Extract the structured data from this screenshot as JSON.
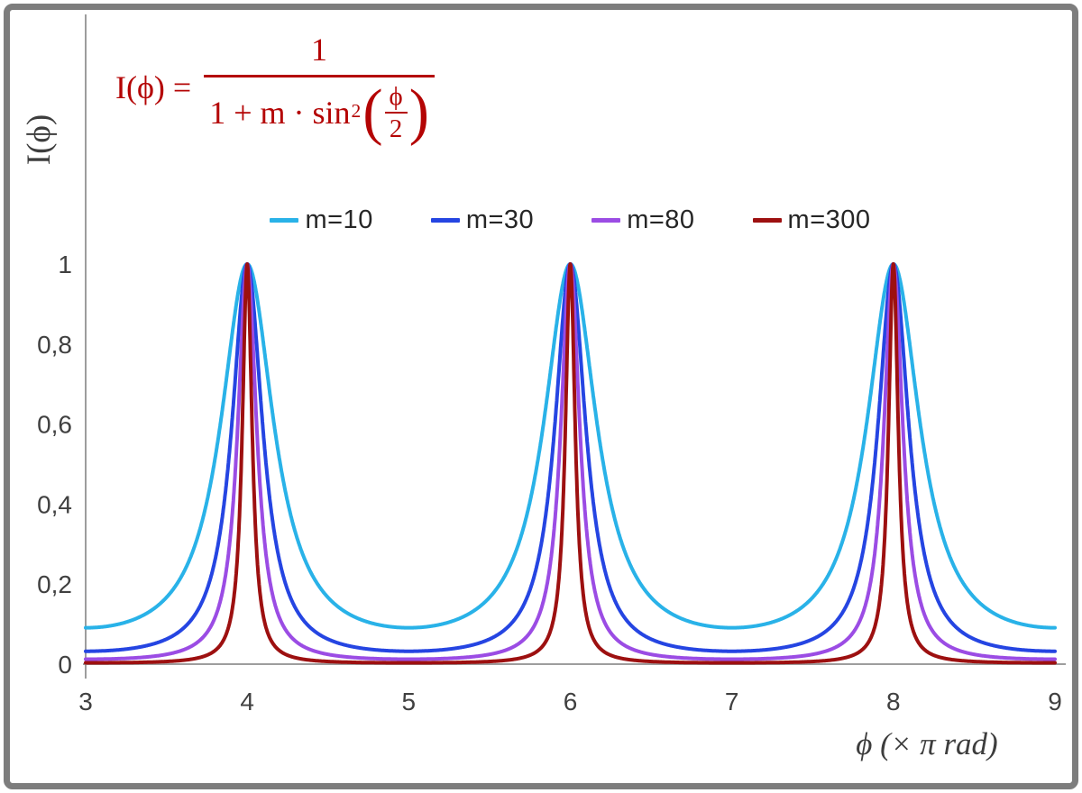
{
  "frame": {
    "border_color": "#7d7d7d",
    "background": "#ffffff"
  },
  "formula": {
    "lhs": "I(ϕ) =",
    "numerator": "1",
    "den_prefix": "1 + m · sin",
    "den_sup": "2",
    "inner_num": "ϕ",
    "inner_den": "2",
    "color": "#b40404"
  },
  "chart_data": {
    "type": "line",
    "title": "",
    "function": "I(phi) = 1 / (1 + m * sin^2(phi/2)), with phi plotted in units of pi rad",
    "xlabel": "ϕ  (× π rad)",
    "ylabel": "I(ϕ)",
    "xlim": [
      3,
      9
    ],
    "ylim": [
      0,
      1
    ],
    "x_ticks": [
      {
        "value": 3,
        "label": "3"
      },
      {
        "value": 4,
        "label": "4"
      },
      {
        "value": 5,
        "label": "5"
      },
      {
        "value": 6,
        "label": "6"
      },
      {
        "value": 7,
        "label": "7"
      },
      {
        "value": 8,
        "label": "8"
      },
      {
        "value": 9,
        "label": "9"
      }
    ],
    "y_ticks": [
      {
        "value": 0,
        "label": "0"
      },
      {
        "value": 0.2,
        "label": "0,2"
      },
      {
        "value": 0.4,
        "label": "0,4"
      },
      {
        "value": 0.6,
        "label": "0,6"
      },
      {
        "value": 0.8,
        "label": "0,8"
      },
      {
        "value": 1,
        "label": "1"
      }
    ],
    "peaks_at_x": [
      4,
      6,
      8
    ],
    "peak_value": 1,
    "grid": false,
    "legend_position": "top-center",
    "axis_color": "#9d9d9d",
    "tick_label_color": "#404040",
    "series": [
      {
        "name": "m=10",
        "m": 10,
        "color": "#29b2e8",
        "value_at_x3": 0.0909
      },
      {
        "name": "m=30",
        "m": 30,
        "color": "#2545e2",
        "value_at_x3": 0.0323
      },
      {
        "name": "m=80",
        "m": 80,
        "color": "#9b4ce4",
        "value_at_x3": 0.0123
      },
      {
        "name": "m=300",
        "m": 300,
        "color": "#9d1010",
        "value_at_x3": 0.0033
      }
    ]
  }
}
